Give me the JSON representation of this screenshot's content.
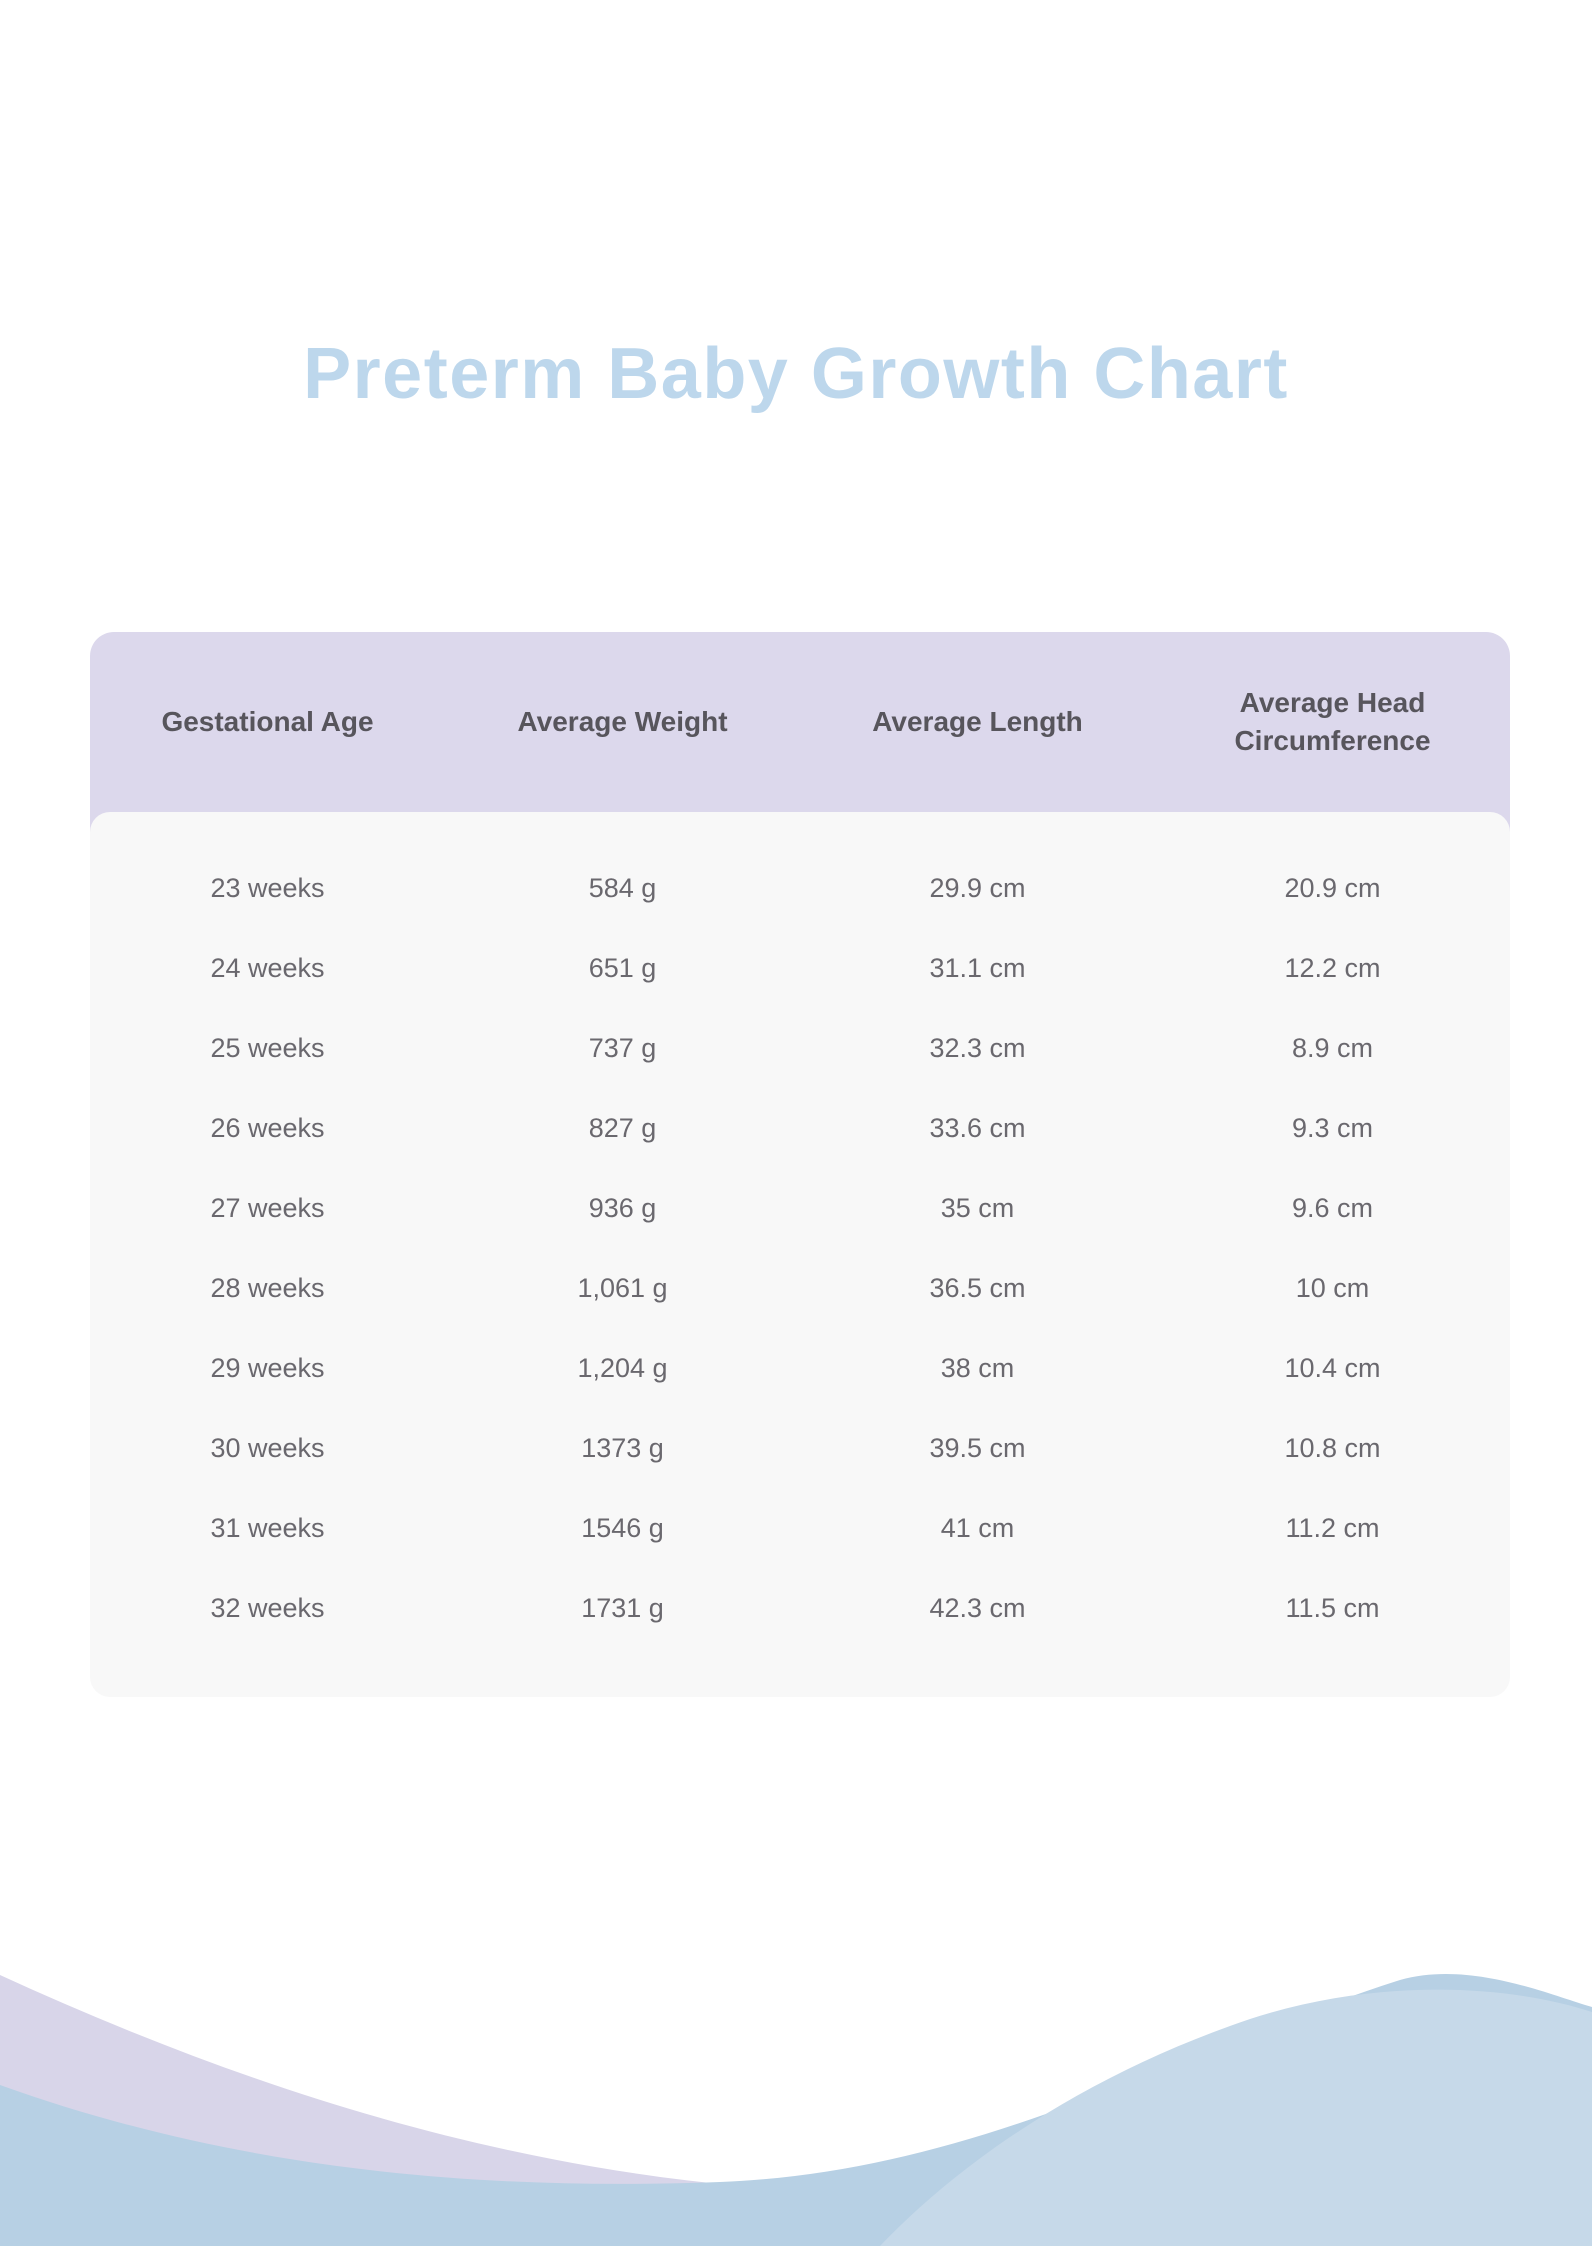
{
  "page": {
    "title": "Preterm Baby Growth Chart"
  },
  "table": {
    "columns": [
      "Gestational Age",
      "Average Weight",
      "Average Length",
      "Average Head Circumference"
    ],
    "rows": [
      [
        "23 weeks",
        "584 g",
        "29.9 cm",
        "20.9 cm"
      ],
      [
        "24 weeks",
        "651 g",
        "31.1 cm",
        "12.2 cm"
      ],
      [
        "25 weeks",
        "737 g",
        "32.3 cm",
        "8.9 cm"
      ],
      [
        "26 weeks",
        "827 g",
        "33.6 cm",
        "9.3 cm"
      ],
      [
        "27 weeks",
        "936 g",
        "35 cm",
        "9.6 cm"
      ],
      [
        "28 weeks",
        "1,061 g",
        "36.5 cm",
        "10 cm"
      ],
      [
        "29 weeks",
        "1,204 g",
        "38 cm",
        "10.4 cm"
      ],
      [
        "30 weeks",
        "1373 g",
        "39.5 cm",
        "10.8 cm"
      ],
      [
        "31 weeks",
        "1546 g",
        "41 cm",
        "11.2 cm"
      ],
      [
        "32 weeks",
        "1731 g",
        "42.3 cm",
        "11.5 cm"
      ]
    ]
  },
  "chart_data": {
    "type": "table",
    "title": "Preterm Baby Growth Chart",
    "columns": [
      "Gestational Age",
      "Average Weight",
      "Average Length",
      "Average Head Circumference"
    ],
    "rows": [
      [
        "23 weeks",
        "584 g",
        "29.9 cm",
        "20.9 cm"
      ],
      [
        "24 weeks",
        "651 g",
        "31.1 cm",
        "12.2 cm"
      ],
      [
        "25 weeks",
        "737 g",
        "32.3 cm",
        "8.9 cm"
      ],
      [
        "26 weeks",
        "827 g",
        "33.6 cm",
        "9.3 cm"
      ],
      [
        "27 weeks",
        "936 g",
        "35 cm",
        "9.6 cm"
      ],
      [
        "28 weeks",
        "1,061 g",
        "36.5 cm",
        "10 cm"
      ],
      [
        "29 weeks",
        "1,204 g",
        "38 cm",
        "10.4 cm"
      ],
      [
        "30 weeks",
        "1373 g",
        "39.5 cm",
        "10.8 cm"
      ],
      [
        "31 weeks",
        "1546 g",
        "41 cm",
        "11.2 cm"
      ],
      [
        "32 weeks",
        "1731 g",
        "42.3 cm",
        "11.5 cm"
      ]
    ]
  },
  "colors": {
    "title_text": "#bdd7ec",
    "header_bg": "#dcd8ec",
    "header_text": "#57555c",
    "card_bg": "#f8f8f8",
    "cell_text": "#6a686e",
    "wave_lavender": "#d8d5e9",
    "wave_blue": "#b7d0e4",
    "wave_light_blue": "#c6d9e9"
  }
}
